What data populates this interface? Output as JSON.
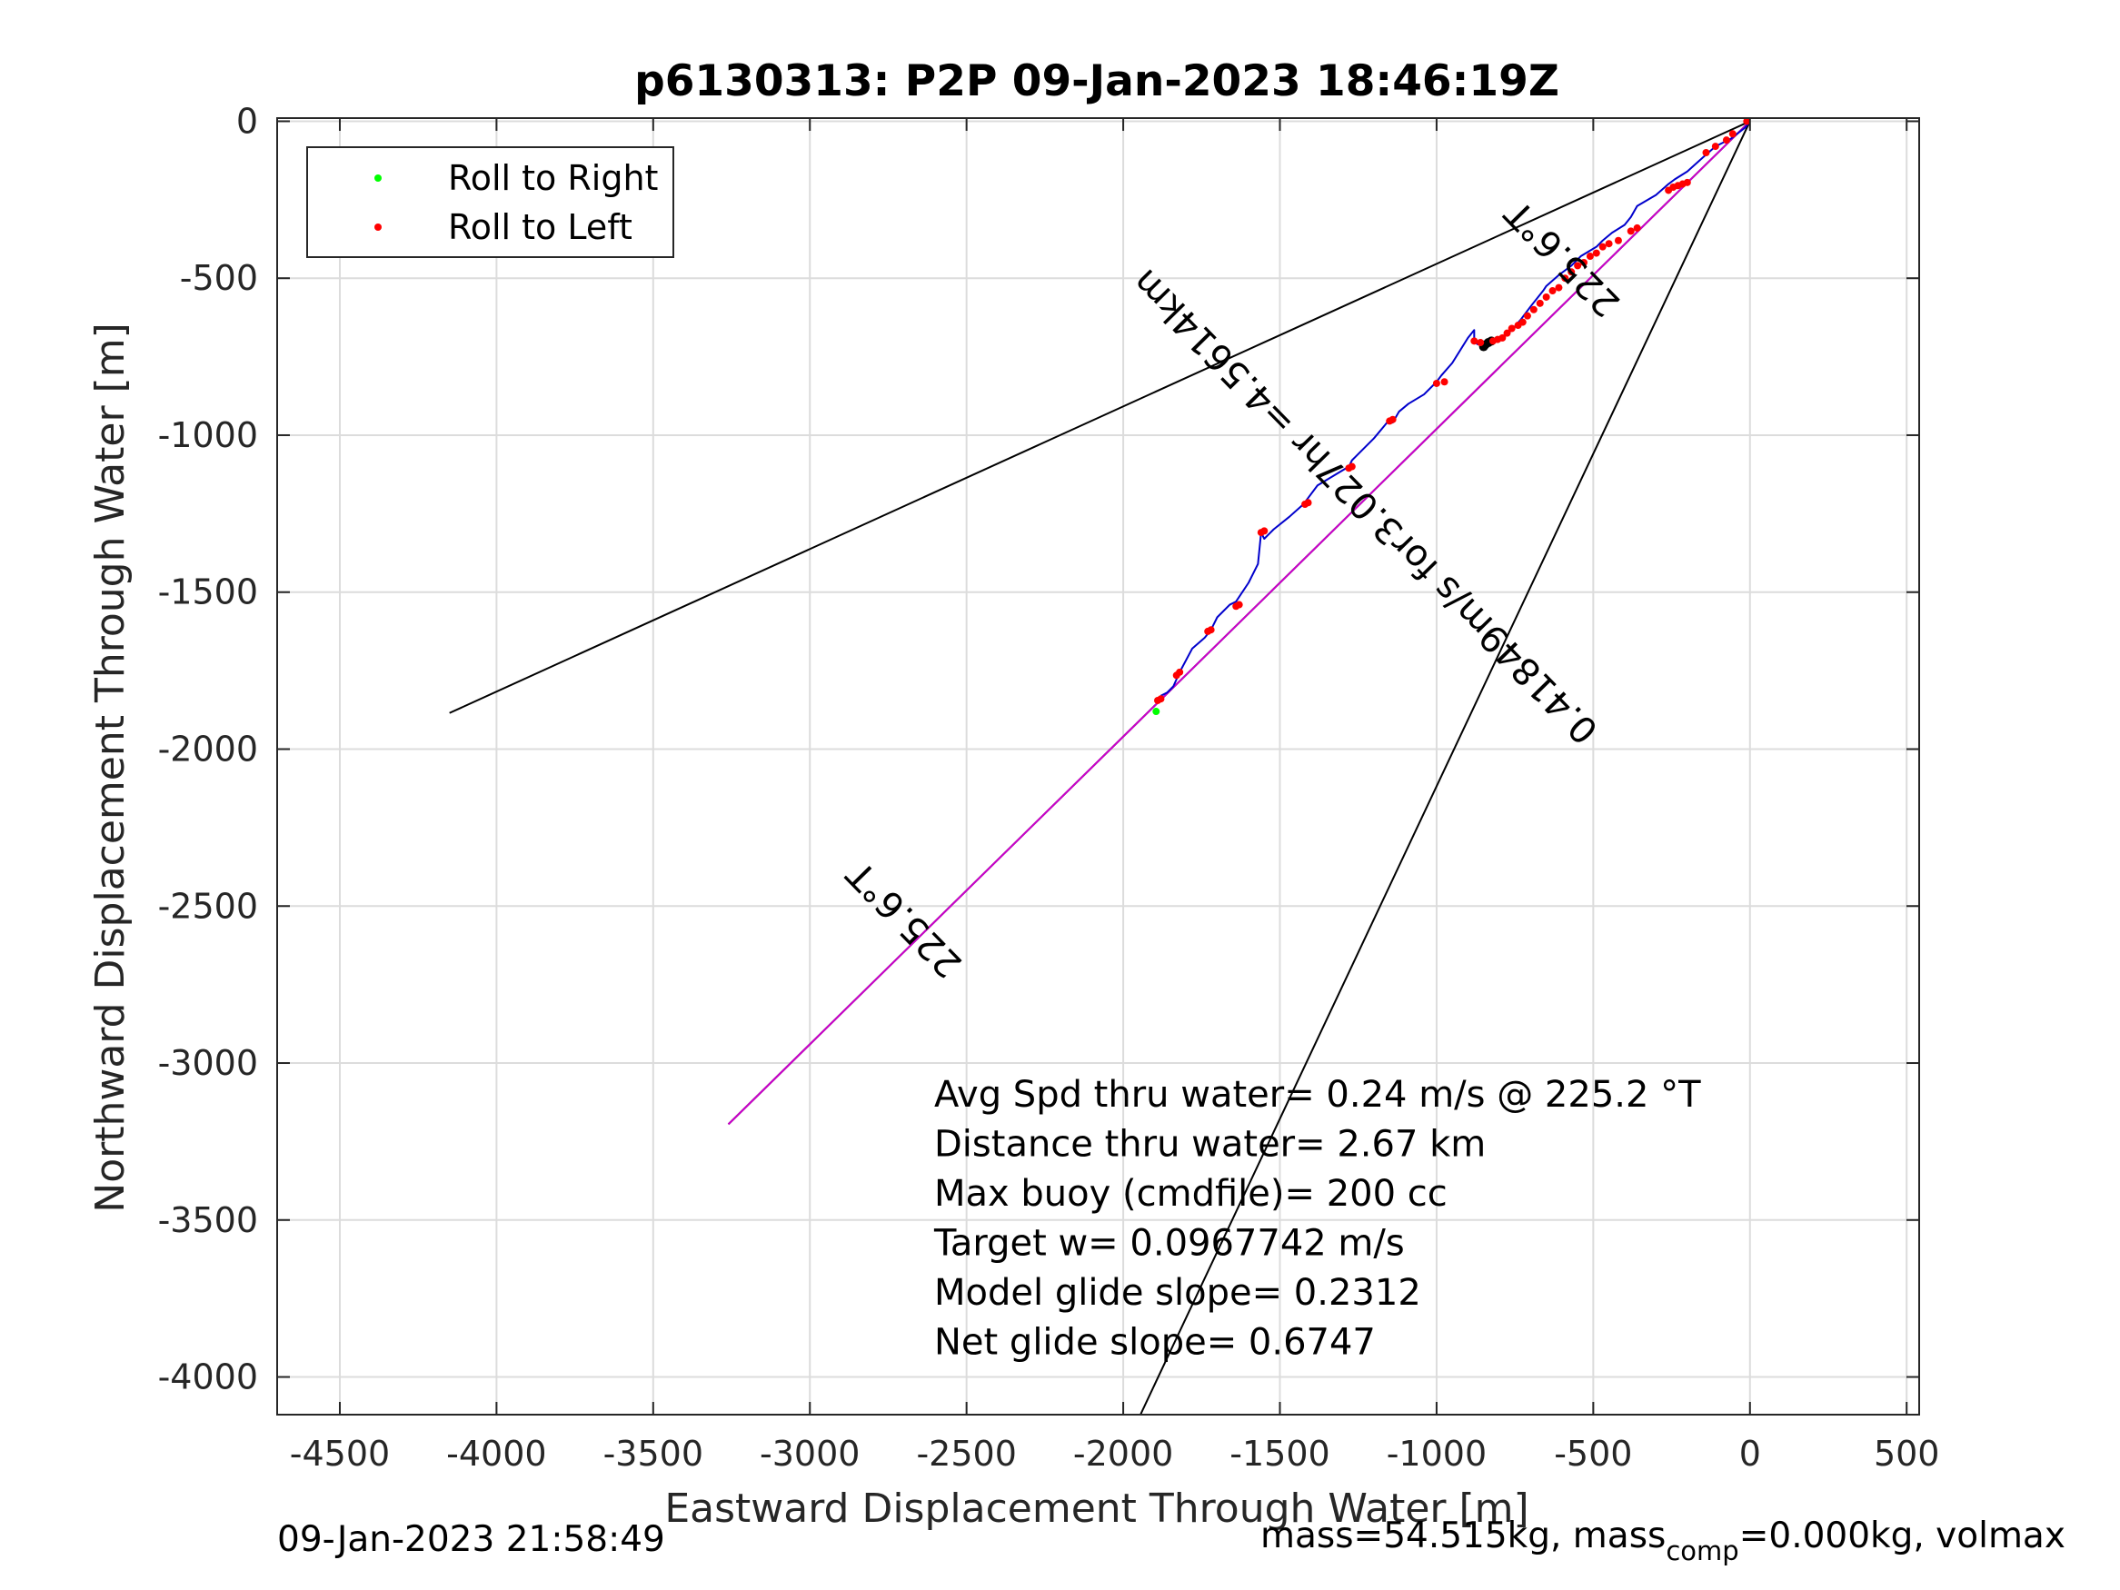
{
  "chart_data": {
    "type": "scatter",
    "title": "p6130313: P2P 09-Jan-2023 18:46:19Z",
    "xlabel": "Eastward Displacement Through Water [m]",
    "ylabel": "Northward Displacement Through Water [m]",
    "xlim": [
      -4700,
      540
    ],
    "ylim": [
      -4120,
      10
    ],
    "xticks": [
      -4500,
      -4000,
      -3500,
      -3000,
      -2500,
      -2000,
      -1500,
      -1000,
      -500,
      0,
      500
    ],
    "yticks": [
      0,
      -500,
      -1000,
      -1500,
      -2000,
      -2500,
      -3000,
      -3500,
      -4000
    ],
    "grid": true,
    "legend_position": "top-left",
    "legend": [
      {
        "label": "Roll to Right",
        "color": "#00ff00"
      },
      {
        "label": "Roll to Left",
        "color": "#ff0000"
      }
    ],
    "reference_lines": [
      {
        "name": "left-bound",
        "x": [
          0,
          -4150
        ],
        "y": [
          0,
          -1885
        ],
        "color": "#000000"
      },
      {
        "name": "right-bound",
        "x": [
          0,
          -1945
        ],
        "y": [
          0,
          -4120
        ],
        "color": "#000000"
      },
      {
        "name": "target-heading",
        "x": [
          0,
          -3260
        ],
        "y": [
          0,
          -3195
        ],
        "color": "#000000"
      },
      {
        "name": "net-heading",
        "x": [
          0,
          -3260
        ],
        "y": [
          0,
          -3195
        ],
        "color": "#cc00cc"
      }
    ],
    "track": {
      "color": "#0000cc",
      "x": [
        0,
        -15,
        -60,
        -110,
        -150,
        -200,
        -240,
        -260,
        -300,
        -360,
        -380,
        -400,
        -440,
        -470,
        -490,
        -540,
        -570,
        -610,
        -650,
        -660,
        -700,
        -730,
        -760,
        -790,
        -815,
        -840,
        -855,
        -870,
        -880,
        -880,
        -900,
        -950,
        -985,
        -1000,
        -1040,
        -1090,
        -1120,
        -1140,
        -1150,
        -1200,
        -1250,
        -1270,
        -1280,
        -1330,
        -1380,
        -1410,
        -1425,
        -1470,
        -1520,
        -1550,
        -1560,
        -1570,
        -1600,
        -1640,
        -1660,
        -1700,
        -1720,
        -1740,
        -1780,
        -1820,
        -1840,
        -1860,
        -1880
      ],
      "y": [
        0,
        -20,
        -55,
        -80,
        -115,
        -160,
        -185,
        -200,
        -235,
        -270,
        -305,
        -330,
        -355,
        -380,
        -400,
        -430,
        -460,
        -490,
        -525,
        -540,
        -590,
        -630,
        -665,
        -690,
        -700,
        -710,
        -715,
        -710,
        -700,
        -665,
        -690,
        -770,
        -810,
        -830,
        -870,
        -900,
        -925,
        -960,
        -950,
        -1010,
        -1060,
        -1080,
        -1100,
        -1130,
        -1160,
        -1200,
        -1220,
        -1260,
        -1300,
        -1330,
        -1310,
        -1410,
        -1470,
        -1530,
        -1540,
        -1580,
        -1620,
        -1645,
        -1680,
        -1755,
        -1800,
        -1820,
        -1830
      ]
    },
    "roll_to_left": {
      "x": [
        -10,
        -55,
        -75,
        -110,
        -140,
        -200,
        -215,
        -230,
        -245,
        -260,
        -360,
        -380,
        -420,
        -450,
        -470,
        -490,
        -510,
        -530,
        -550,
        -570,
        -590,
        -610,
        -630,
        -650,
        -670,
        -690,
        -710,
        -725,
        -740,
        -760,
        -775,
        -790,
        -805,
        -820,
        -860,
        -880,
        -975,
        -1000,
        -1140,
        -1150,
        -1270,
        -1280,
        -1410,
        -1420,
        -1550,
        -1560,
        -1630,
        -1640,
        -1720,
        -1730,
        -1820,
        -1830,
        -1880,
        -1890
      ],
      "y": [
        0,
        -40,
        -60,
        -80,
        -100,
        -195,
        -200,
        -205,
        -210,
        -220,
        -340,
        -350,
        -380,
        -390,
        -400,
        -420,
        -430,
        -450,
        -460,
        -480,
        -500,
        -530,
        -540,
        -560,
        -580,
        -600,
        -620,
        -640,
        -650,
        -660,
        -675,
        -690,
        -695,
        -700,
        -705,
        -700,
        -830,
        -835,
        -950,
        -955,
        -1100,
        -1105,
        -1215,
        -1220,
        -1305,
        -1310,
        -1540,
        -1545,
        -1620,
        -1625,
        -1755,
        -1765,
        -1840,
        -1845
      ]
    },
    "roll_to_right": {
      "x": [
        -1895
      ],
      "y": [
        -1880
      ]
    },
    "black_markers": {
      "x": [
        -825,
        -835,
        -845,
        -850
      ],
      "y": [
        -700,
        -705,
        -712,
        -718
      ]
    },
    "line_labels": [
      {
        "text": "225.6°T",
        "x": -570,
        "y": -410,
        "angle": 45.6
      },
      {
        "text": "0.41849m/s for3.027hr =4.5614km",
        "x": -1200,
        "y": -1200,
        "angle": 45.6
      },
      {
        "text": "225.6°T",
        "x": -2670,
        "y": -2515,
        "angle": 45.6
      }
    ],
    "stats": [
      "Avg Spd thru water=  0.24 m/s @ 225.2 °T",
      "Distance thru water=  2.67 km",
      "Max buoy (cmdfile)= 200 cc",
      "Target w= 0.0967742 m/s",
      "Model glide slope= 0.2312",
      "Net glide slope= 0.6747"
    ]
  },
  "footer": {
    "timestamp": "09-Jan-2023 21:58:49",
    "mass_prefix": "mass=54.515kg, mass",
    "mass_sub": "comp",
    "mass_suffix": "=0.000kg, volmax"
  }
}
